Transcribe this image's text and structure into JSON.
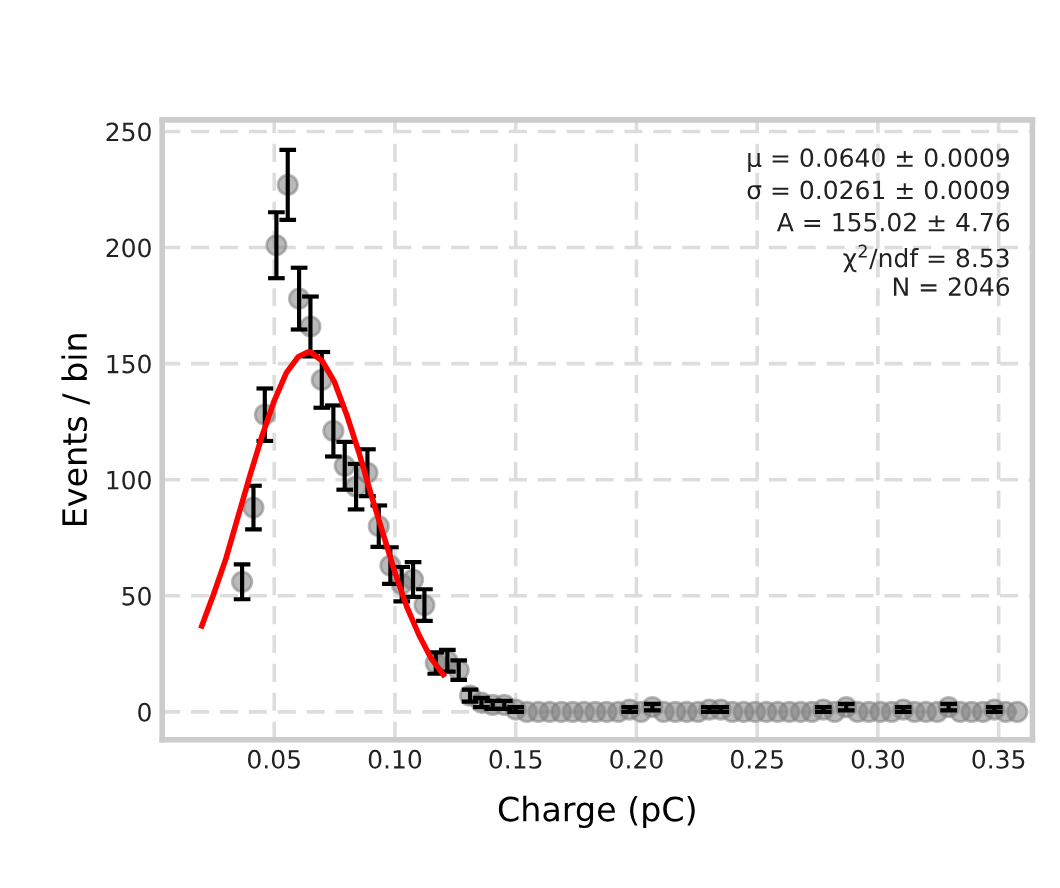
{
  "chart_data": {
    "type": "scatter",
    "xlabel": "Charge (pC)",
    "ylabel": "Events / bin",
    "xlim": [
      0.0036,
      0.364
    ],
    "ylim": [
      -12,
      255
    ],
    "xticks": [
      {
        "value": 0.05,
        "label": "0.05"
      },
      {
        "value": 0.1,
        "label": "0.10"
      },
      {
        "value": 0.15,
        "label": "0.15"
      },
      {
        "value": 0.2,
        "label": "0.20"
      },
      {
        "value": 0.25,
        "label": "0.25"
      },
      {
        "value": 0.3,
        "label": "0.30"
      },
      {
        "value": 0.35,
        "label": "0.35"
      }
    ],
    "yticks": [
      0,
      50,
      100,
      150,
      200,
      250
    ],
    "grid": true,
    "annotations": [
      "μ = 0.0640 ± 0.0009",
      "σ = 0.0261 ± 0.0009",
      "A = 155.02 ± 4.76",
      "χ$^{2}$/ndf = 8.53",
      "N = 2046"
    ],
    "series": [
      {
        "marker": "circle",
        "color": "#808080",
        "x": [
          0.0367,
          0.0414,
          0.0461,
          0.0509,
          0.0556,
          0.0603,
          0.065,
          0.0697,
          0.0745,
          0.0792,
          0.0839,
          0.0886,
          0.0933,
          0.0981,
          0.1028,
          0.1075,
          0.1122,
          0.1169,
          0.1217,
          0.1264,
          0.1311,
          0.1358,
          0.1405,
          0.1453,
          0.15,
          0.1547,
          0.1594,
          0.1641,
          0.1689,
          0.1736,
          0.1783,
          0.183,
          0.1877,
          0.1925,
          0.1972,
          0.2019,
          0.2066,
          0.2113,
          0.2161,
          0.2208,
          0.2255,
          0.2302,
          0.2349,
          0.2397,
          0.2444,
          0.2491,
          0.2538,
          0.2585,
          0.2633,
          0.268,
          0.2727,
          0.2774,
          0.2821,
          0.2869,
          0.2916,
          0.2963,
          0.301,
          0.3057,
          0.3105,
          0.3152,
          0.3199,
          0.3246,
          0.3293,
          0.3341,
          0.3388,
          0.3435,
          0.3482,
          0.3529,
          0.3577
        ],
        "values": [
          56,
          88,
          128,
          201,
          227,
          178,
          166,
          143,
          121,
          106,
          97,
          103,
          80,
          63,
          55,
          57,
          46,
          21,
          22,
          18,
          7,
          4,
          3,
          3,
          1,
          0,
          0,
          0,
          0,
          0,
          0,
          0,
          0,
          0,
          1,
          0,
          2,
          0,
          0,
          0,
          0,
          1,
          1,
          0,
          0,
          0,
          0,
          0,
          0,
          0,
          0,
          1,
          0,
          2,
          0,
          0,
          0,
          0,
          1,
          0,
          0,
          0,
          2,
          0,
          0,
          0,
          1,
          0,
          0
        ],
        "errors": [
          7.5,
          9.4,
          11.3,
          14.2,
          15.1,
          13.3,
          12.9,
          12.0,
          11.0,
          10.3,
          9.8,
          10.1,
          8.9,
          7.9,
          7.4,
          7.5,
          6.8,
          4.6,
          4.7,
          4.2,
          2.6,
          2.0,
          1.7,
          1.7,
          1,
          null,
          null,
          null,
          null,
          null,
          null,
          null,
          null,
          null,
          1,
          null,
          1.4,
          null,
          null,
          null,
          null,
          1,
          1,
          null,
          null,
          null,
          null,
          null,
          null,
          null,
          null,
          1,
          null,
          1.4,
          null,
          null,
          null,
          null,
          1,
          null,
          null,
          null,
          1.4,
          null,
          null,
          null,
          1,
          null,
          null
        ]
      },
      {
        "type": "line",
        "color": "#ff0000",
        "x": [
          0.02,
          0.025,
          0.03,
          0.035,
          0.04,
          0.045,
          0.05,
          0.055,
          0.06,
          0.064,
          0.065,
          0.07,
          0.075,
          0.08,
          0.085,
          0.09,
          0.095,
          0.1,
          0.105,
          0.11,
          0.115,
          0.12
        ],
        "values": [
          37,
          51,
          66,
          84,
          102,
          119,
          134,
          146,
          153,
          155,
          155,
          151,
          142,
          128,
          112,
          94,
          77,
          60,
          45,
          33,
          23,
          16
        ]
      }
    ]
  }
}
